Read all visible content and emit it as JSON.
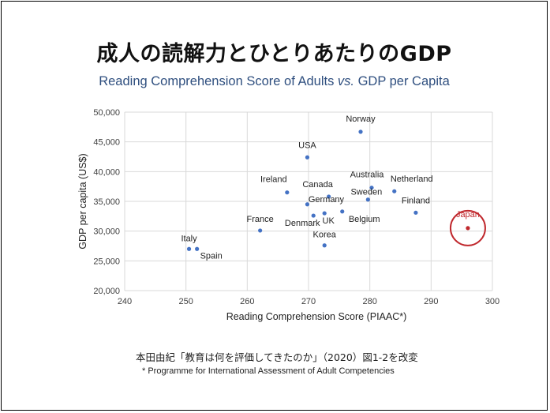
{
  "title": "成人の読解力とひとりあたりのGDP",
  "subtitle": {
    "part1": "Reading Comprehension Score of Adults ",
    "part2": "vs.",
    "part3": " GDP per Capita"
  },
  "source": "本田由紀「教育は何を評価してきたのか」（2020）図1-2を改変",
  "footnote": "* Programme for International Assessment of Adult Competencies",
  "colors": {
    "point": "#4472c4",
    "highlight": "#c0282d",
    "grid": "#d9d9d9",
    "axis_text": "#404040"
  },
  "chart_data": {
    "type": "scatter",
    "xlabel": "Reading Comprehension Score (PIAAC*)",
    "ylabel": "GDP per capita (US$)",
    "xlim": [
      240,
      300
    ],
    "ylim": [
      20000,
      50000
    ],
    "xticks": [
      "240",
      "250",
      "260",
      "270",
      "280",
      "290",
      "300"
    ],
    "yticks": [
      "20,000",
      "25,000",
      "30,000",
      "35,000",
      "40,000",
      "45,000",
      "50,000"
    ],
    "grid": true,
    "points": [
      {
        "label": "Norway",
        "x": 278.5,
        "y": 46700
      },
      {
        "label": "USA",
        "x": 269.8,
        "y": 42400
      },
      {
        "label": "Australia",
        "x": 280.3,
        "y": 37300
      },
      {
        "label": "Ireland",
        "x": 266.5,
        "y": 36500
      },
      {
        "label": "Canada",
        "x": 273.3,
        "y": 35800
      },
      {
        "label": "Netherland",
        "x": 284.0,
        "y": 36700
      },
      {
        "label": "Sweden",
        "x": 279.7,
        "y": 35300
      },
      {
        "label": "Germany",
        "x": 269.8,
        "y": 34500
      },
      {
        "label": "Finland",
        "x": 287.5,
        "y": 33100
      },
      {
        "label": "UK",
        "x": 272.6,
        "y": 33000
      },
      {
        "label": "Denmark",
        "x": 270.8,
        "y": 32600
      },
      {
        "label": "Belgium",
        "x": 275.5,
        "y": 33300
      },
      {
        "label": "France",
        "x": 262.1,
        "y": 30100
      },
      {
        "label": "Japan",
        "x": 296.0,
        "y": 30500,
        "highlight": true
      },
      {
        "label": "Korea",
        "x": 272.6,
        "y": 27600
      },
      {
        "label": "Italy",
        "x": 250.5,
        "y": 27000
      },
      {
        "label": "Spain",
        "x": 251.8,
        "y": 27000
      }
    ]
  }
}
